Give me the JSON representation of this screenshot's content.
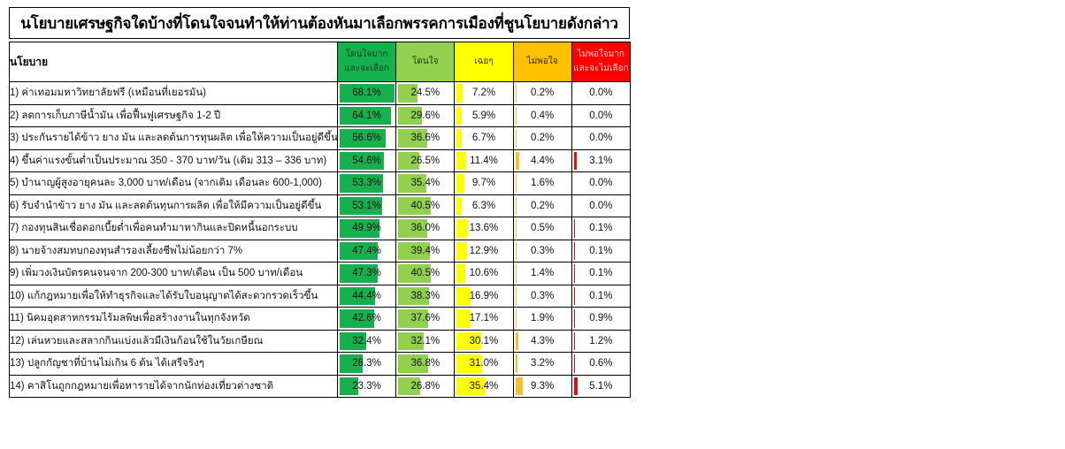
{
  "title": "นโยบายเศรษฐกิจใดบ้างที่โดนใจจนทำให้ท่านต้องหันมาเลือกพรรคการเมืองที่ชูนโยบายดังกล่าว",
  "table": {
    "policy_header": "นโยบาย",
    "columns": [
      {
        "label_line1": "โดนใจมาก",
        "label_line2": "และจะเลือก",
        "header_bg": "#16b04f",
        "header_fg": "#1a3d1f",
        "bar_color": "#16b04f"
      },
      {
        "label_line1": "โดนใจ",
        "label_line2": "",
        "header_bg": "#92d050",
        "header_fg": "#1d3a10",
        "bar_color": "#92d050"
      },
      {
        "label_line1": "เฉยๆ",
        "label_line2": "",
        "header_bg": "#ffff00",
        "header_fg": "#333300",
        "bar_color": "#ffff00"
      },
      {
        "label_line1": "ไม่พอใจ",
        "label_line2": "",
        "header_bg": "#ffc000",
        "header_fg": "#3a2a00",
        "bar_color": "#f5c030"
      },
      {
        "label_line1": "ไม่พอใจมาก",
        "label_line2": "และจะไม่เลือก",
        "header_bg": "#ff0000",
        "header_fg": "#ffd0d0",
        "bar_color": "#e01010"
      }
    ],
    "rows": [
      {
        "policy": "1) ค่าเทอมมหาวิทยาลัยฟรี (เหมือนที่เยอรมัน)",
        "values": [
          "68.1%",
          "24.5%",
          "7.2%",
          "0.2%",
          "0.0%"
        ]
      },
      {
        "policy": "2) ลดการเก็บภาษีน้ำมัน เพื่อฟื้นฟูเศรษฐกิจ 1-2 ปี",
        "values": [
          "64.1%",
          "29.6%",
          "5.9%",
          "0.4%",
          "0.0%"
        ]
      },
      {
        "policy": "3) ประกันรายได้ข้าว ยาง มัน และลดต้นการทุนผลิต เพื่อให้ความเป็นอยู่ดีขึ้น",
        "values": [
          "56.6%",
          "36.6%",
          "6.7%",
          "0.2%",
          "0.0%"
        ]
      },
      {
        "policy": "4) ขึ้นค่าแรงขั้นต่ำเป็นประมาณ 350 - 370 บาท/วัน (เดิม 313 – 336 บาท)",
        "values": [
          "54.6%",
          "26.5%",
          "11.4%",
          "4.4%",
          "3.1%"
        ]
      },
      {
        "policy": "5) บำนาญผู้สูงอายุคนละ 3,000 บาท/เดือน (จากเดิม เดือนละ 600-1,000)",
        "values": [
          "53.3%",
          "35.4%",
          "9.7%",
          "1.6%",
          "0.0%"
        ]
      },
      {
        "policy": "6) รับจำนำข้าว ยาง มัน และลดต้นทุนการผลิต เพื่อให้มีความเป็นอยู่ดีขึ้น",
        "values": [
          "53.1%",
          "40.5%",
          "6.3%",
          "0.2%",
          "0.0%"
        ]
      },
      {
        "policy": "7) กองทุนสินเชื่อดอกเบี้ยต่ำเพื่อคนทำมาหากินและปิดหนี้นอกระบบ",
        "values": [
          "49.9%",
          "36.0%",
          "13.6%",
          "0.5%",
          "0.1%"
        ]
      },
      {
        "policy": "8) นายจ้างสมทบกองทุนสำรองเลี้ยงชีพไม่น้อยกว่า 7%",
        "values": [
          "47.4%",
          "39.4%",
          "12.9%",
          "0.3%",
          "0.1%"
        ]
      },
      {
        "policy": "9) เพิ่มวงเงินบัตรคนจนจาก 200-300 บาท/เดือน เป็น 500 บาท/เดือน",
        "values": [
          "47.3%",
          "40.5%",
          "10.6%",
          "1.4%",
          "0.1%"
        ]
      },
      {
        "policy": "10) แก้กฎหมายเพื่อให้ทำธุรกิจและได้รับใบอนุญาตได้สะดวกรวดเร็วขึ้น",
        "values": [
          "44.4%",
          "38.3%",
          "16.9%",
          "0.3%",
          "0.1%"
        ]
      },
      {
        "policy": "11) นิคมอุตสาหกรรมไร้มลพิษเพื่อสร้างงานในทุกจังหวัด",
        "values": [
          "42.6%",
          "37.6%",
          "17.1%",
          "1.9%",
          "0.9%"
        ]
      },
      {
        "policy": "12) เล่นหวยและสลากกินแบ่งแล้วมีเงินก้อนใช้ในวัยเกษียณ",
        "values": [
          "32.4%",
          "32.1%",
          "30.1%",
          "4.3%",
          "1.2%"
        ]
      },
      {
        "policy": "13) ปลูกกัญชาที่บ้านไม่เกิน 6 ต้น ได้เสรีจริงๆ",
        "values": [
          "28.3%",
          "36.8%",
          "31.0%",
          "3.2%",
          "0.6%"
        ]
      },
      {
        "policy": "14) คาสิโนถูกกฎหมายเพื่อหารายได้จากนักท่องเที่ยวต่างชาติ",
        "values": [
          "23.3%",
          "26.8%",
          "35.4%",
          "9.3%",
          "5.1%"
        ]
      }
    ]
  }
}
